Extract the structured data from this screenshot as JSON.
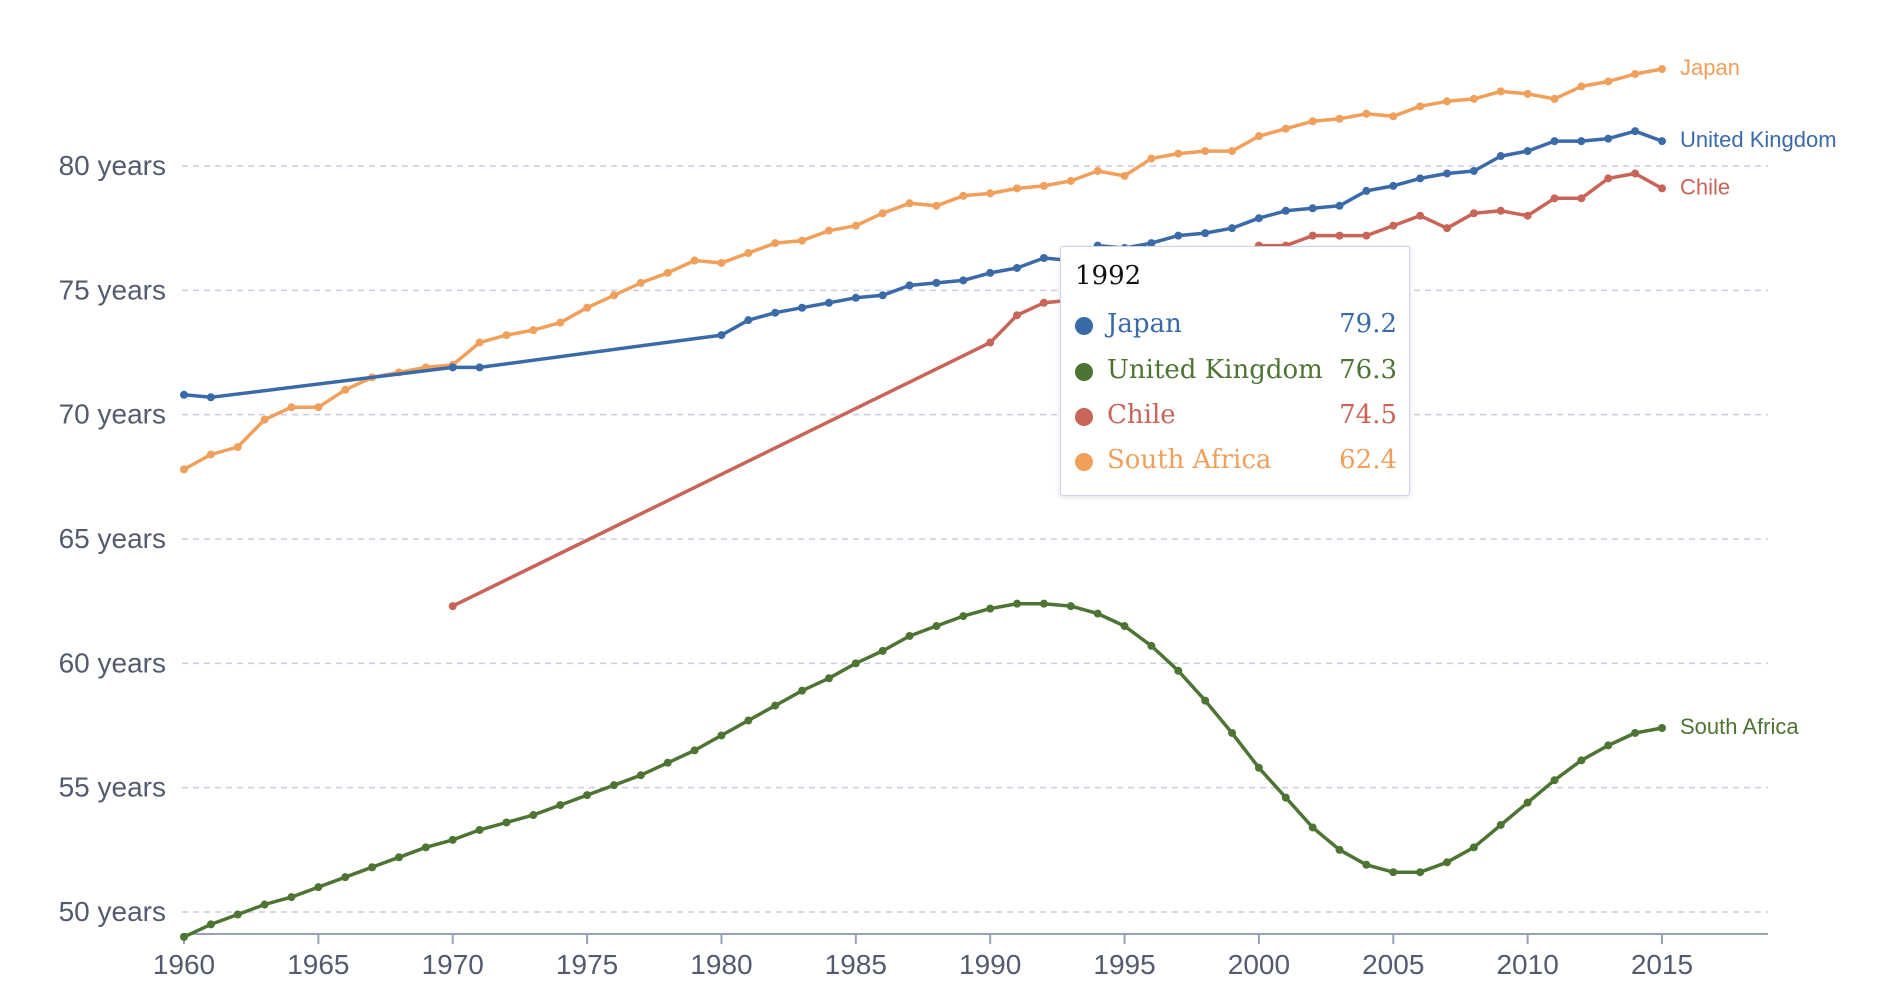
{
  "chart_data": {
    "type": "line",
    "title": "",
    "xlabel": "",
    "ylabel": "",
    "xlim": [
      1960,
      2019
    ],
    "ylim": [
      49,
      85
    ],
    "x_ticks": [
      1960,
      1965,
      1970,
      1975,
      1980,
      1985,
      1990,
      1995,
      2000,
      2005,
      2010,
      2015
    ],
    "y_ticks": [
      50,
      55,
      60,
      65,
      70,
      75,
      80
    ],
    "y_tick_suffix": " years",
    "y_tick_labels": [
      "50 years",
      "55 years",
      "60 years",
      "65 years",
      "70 years",
      "75 years",
      "80 years"
    ],
    "grid": "horizontal-dashed",
    "series": [
      {
        "name": "Japan",
        "color": "#f0a05a",
        "points": [
          [
            1960,
            67.8
          ],
          [
            1961,
            68.4
          ],
          [
            1962,
            68.7
          ],
          [
            1963,
            69.8
          ],
          [
            1964,
            70.3
          ],
          [
            1965,
            70.3
          ],
          [
            1966,
            71.0
          ],
          [
            1967,
            71.5
          ],
          [
            1968,
            71.7
          ],
          [
            1969,
            71.9
          ],
          [
            1970,
            72.0
          ],
          [
            1971,
            72.9
          ],
          [
            1972,
            73.2
          ],
          [
            1973,
            73.4
          ],
          [
            1974,
            73.7
          ],
          [
            1975,
            74.3
          ],
          [
            1976,
            74.8
          ],
          [
            1977,
            75.3
          ],
          [
            1978,
            75.7
          ],
          [
            1979,
            76.2
          ],
          [
            1980,
            76.1
          ],
          [
            1981,
            76.5
          ],
          [
            1982,
            76.9
          ],
          [
            1983,
            77.0
          ],
          [
            1984,
            77.4
          ],
          [
            1985,
            77.6
          ],
          [
            1986,
            78.1
          ],
          [
            1987,
            78.5
          ],
          [
            1988,
            78.4
          ],
          [
            1989,
            78.8
          ],
          [
            1990,
            78.9
          ],
          [
            1991,
            79.1
          ],
          [
            1992,
            79.2
          ],
          [
            1993,
            79.4
          ],
          [
            1994,
            79.8
          ],
          [
            1995,
            79.6
          ],
          [
            1996,
            80.3
          ],
          [
            1997,
            80.5
          ],
          [
            1998,
            80.6
          ],
          [
            1999,
            80.6
          ],
          [
            2000,
            81.2
          ],
          [
            2001,
            81.5
          ],
          [
            2002,
            81.8
          ],
          [
            2003,
            81.9
          ],
          [
            2004,
            82.1
          ],
          [
            2005,
            82.0
          ],
          [
            2006,
            82.4
          ],
          [
            2007,
            82.6
          ],
          [
            2008,
            82.7
          ],
          [
            2009,
            83.0
          ],
          [
            2010,
            82.9
          ],
          [
            2011,
            82.7
          ],
          [
            2012,
            83.2
          ],
          [
            2013,
            83.4
          ],
          [
            2014,
            83.7
          ],
          [
            2015,
            83.9
          ]
        ]
      },
      {
        "name": "United Kingdom",
        "color": "#3b6aa8",
        "points": [
          [
            1960,
            70.8
          ],
          [
            1961,
            70.7
          ],
          [
            1970,
            71.9
          ],
          [
            1971,
            71.9
          ],
          [
            1980,
            73.2
          ],
          [
            1981,
            73.8
          ],
          [
            1982,
            74.1
          ],
          [
            1983,
            74.3
          ],
          [
            1984,
            74.5
          ],
          [
            1985,
            74.7
          ],
          [
            1986,
            74.8
          ],
          [
            1987,
            75.2
          ],
          [
            1988,
            75.3
          ],
          [
            1989,
            75.4
          ],
          [
            1990,
            75.7
          ],
          [
            1991,
            75.9
          ],
          [
            1992,
            76.3
          ],
          [
            1993,
            76.2
          ],
          [
            1994,
            76.8
          ],
          [
            1995,
            76.7
          ],
          [
            1996,
            76.9
          ],
          [
            1997,
            77.2
          ],
          [
            1998,
            77.3
          ],
          [
            1999,
            77.5
          ],
          [
            2000,
            77.9
          ],
          [
            2001,
            78.2
          ],
          [
            2002,
            78.3
          ],
          [
            2003,
            78.4
          ],
          [
            2004,
            79.0
          ],
          [
            2005,
            79.2
          ],
          [
            2006,
            79.5
          ],
          [
            2007,
            79.7
          ],
          [
            2008,
            79.8
          ],
          [
            2009,
            80.4
          ],
          [
            2010,
            80.6
          ],
          [
            2011,
            81.0
          ],
          [
            2012,
            81.0
          ],
          [
            2013,
            81.1
          ],
          [
            2014,
            81.4
          ],
          [
            2015,
            81.0
          ]
        ]
      },
      {
        "name": "Chile",
        "color": "#c86458",
        "points": [
          [
            1970,
            62.3
          ],
          [
            1990,
            72.9
          ],
          [
            1991,
            74.0
          ],
          [
            1992,
            74.5
          ],
          [
            1993,
            74.6
          ],
          [
            1994,
            74.9
          ],
          [
            1995,
            75.1
          ],
          [
            1996,
            75.3
          ],
          [
            1997,
            75.6
          ],
          [
            1998,
            75.8
          ],
          [
            1999,
            76.0
          ],
          [
            2000,
            76.8
          ],
          [
            2001,
            76.8
          ],
          [
            2002,
            77.2
          ],
          [
            2003,
            77.2
          ],
          [
            2004,
            77.2
          ],
          [
            2005,
            77.6
          ],
          [
            2006,
            78.0
          ],
          [
            2007,
            77.5
          ],
          [
            2008,
            78.1
          ],
          [
            2009,
            78.2
          ],
          [
            2010,
            78.0
          ],
          [
            2011,
            78.7
          ],
          [
            2012,
            78.7
          ],
          [
            2013,
            79.5
          ],
          [
            2014,
            79.7
          ],
          [
            2015,
            79.1
          ]
        ]
      },
      {
        "name": "South Africa",
        "color": "#4e7433",
        "points": [
          [
            1960,
            49.0
          ],
          [
            1961,
            49.5
          ],
          [
            1962,
            49.9
          ],
          [
            1963,
            50.3
          ],
          [
            1964,
            50.6
          ],
          [
            1965,
            51.0
          ],
          [
            1966,
            51.4
          ],
          [
            1967,
            51.8
          ],
          [
            1968,
            52.2
          ],
          [
            1969,
            52.6
          ],
          [
            1970,
            52.9
          ],
          [
            1971,
            53.3
          ],
          [
            1972,
            53.6
          ],
          [
            1973,
            53.9
          ],
          [
            1974,
            54.3
          ],
          [
            1975,
            54.7
          ],
          [
            1976,
            55.1
          ],
          [
            1977,
            55.5
          ],
          [
            1978,
            56.0
          ],
          [
            1979,
            56.5
          ],
          [
            1980,
            57.1
          ],
          [
            1981,
            57.7
          ],
          [
            1982,
            58.3
          ],
          [
            1983,
            58.9
          ],
          [
            1984,
            59.4
          ],
          [
            1985,
            60.0
          ],
          [
            1986,
            60.5
          ],
          [
            1987,
            61.1
          ],
          [
            1988,
            61.5
          ],
          [
            1989,
            61.9
          ],
          [
            1990,
            62.2
          ],
          [
            1991,
            62.4
          ],
          [
            1992,
            62.4
          ],
          [
            1993,
            62.3
          ],
          [
            1994,
            62.0
          ],
          [
            1995,
            61.5
          ],
          [
            1996,
            60.7
          ],
          [
            1997,
            59.7
          ],
          [
            1998,
            58.5
          ],
          [
            1999,
            57.2
          ],
          [
            2000,
            55.8
          ],
          [
            2001,
            54.6
          ],
          [
            2002,
            53.4
          ],
          [
            2003,
            52.5
          ],
          [
            2004,
            51.9
          ],
          [
            2005,
            51.6
          ],
          [
            2006,
            51.6
          ],
          [
            2007,
            52.0
          ],
          [
            2008,
            52.6
          ],
          [
            2009,
            53.5
          ],
          [
            2010,
            54.4
          ],
          [
            2011,
            55.3
          ],
          [
            2012,
            56.1
          ],
          [
            2013,
            56.7
          ],
          [
            2014,
            57.2
          ],
          [
            2015,
            57.4
          ]
        ]
      }
    ],
    "end_labels": [
      {
        "text": "Japan",
        "color": "#f0a05a",
        "y": 83.9
      },
      {
        "text": "United Kingdom",
        "color": "#3b6aa8",
        "y": 81.0
      },
      {
        "text": "Chile",
        "color": "#c86458",
        "y": 79.1
      },
      {
        "text": "South Africa",
        "color": "#4e7433",
        "y": 57.4
      }
    ],
    "tooltip": {
      "title": "1992",
      "rows": [
        {
          "name": "Japan",
          "value": "79.2",
          "color": "#3b6aa8"
        },
        {
          "name": "United Kingdom",
          "value": "76.3",
          "color": "#4e7433"
        },
        {
          "name": "Chile",
          "value": "74.5",
          "color": "#c86458"
        },
        {
          "name": "South Africa",
          "value": "62.4",
          "color": "#f0a05a"
        }
      ]
    }
  }
}
